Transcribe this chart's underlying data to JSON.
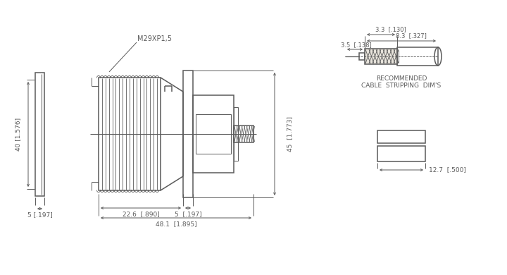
{
  "bg_color": "#ffffff",
  "line_color": "#5a5a5a",
  "lw": 1.1,
  "tlw": 0.7,
  "dims": {
    "main_height": "40 [1.576]",
    "side_width": "5 [.197]",
    "total_len": "48.1  [1.895]",
    "thread_len": "22.6  [.890]",
    "flange_w": "5  [.197]",
    "total_height": "45  [1.773]",
    "cs_label1": "3.3  [.130]",
    "cs_label2": "8.3  [.327]",
    "cs_label3": "3.5  [.138]",
    "nut_width": "12.7  [.500]",
    "thread_label": "M29XP1,5",
    "rec_line1": "RECOMMENDED",
    "rec_line2": "CABLE  STRIPPING  DIM'S"
  }
}
